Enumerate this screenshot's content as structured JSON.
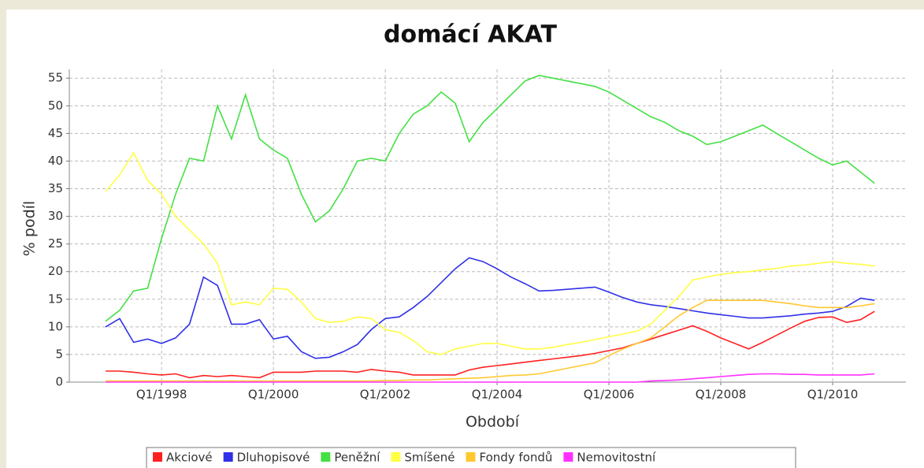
{
  "chart_data": {
    "type": "line",
    "title": "domácí AKAT",
    "x_label": "Období",
    "y_label": "% podíl",
    "x": [
      1997,
      1997.25,
      1997.5,
      1997.75,
      1998,
      1998.25,
      1998.5,
      1998.75,
      1999,
      1999.25,
      1999.5,
      1999.75,
      2000,
      2000.25,
      2000.5,
      2000.75,
      2001,
      2001.25,
      2001.5,
      2001.75,
      2002,
      2002.25,
      2002.5,
      2002.75,
      2003,
      2003.25,
      2003.5,
      2003.75,
      2004,
      2004.25,
      2004.5,
      2004.75,
      2005,
      2005.25,
      2005.5,
      2005.75,
      2006,
      2006.25,
      2006.5,
      2006.75,
      2007,
      2007.25,
      2007.5,
      2007.75,
      2008,
      2008.25,
      2008.5,
      2008.75,
      2009,
      2009.25,
      2009.5,
      2009.75,
      2010,
      2010.25,
      2010.5,
      2010.75
    ],
    "series": [
      {
        "name": "Akciové",
        "color": "#ff2020",
        "values": [
          2,
          2,
          1.8,
          1.5,
          1.3,
          1.5,
          0.8,
          1.2,
          1,
          1.2,
          1,
          0.8,
          1.8,
          1.8,
          1.8,
          2,
          2,
          2,
          1.8,
          2.3,
          2,
          1.8,
          1.3,
          1.3,
          1.3,
          1.3,
          2.2,
          2.7,
          3,
          3.3,
          3.6,
          3.9,
          4.2,
          4.5,
          4.8,
          5.2,
          5.7,
          6.2,
          7,
          7.8,
          8.6,
          9.4,
          10.2,
          9.2,
          8,
          7,
          6,
          7.2,
          8.5,
          9.8,
          11,
          11.7,
          11.8,
          10.8,
          11.3,
          12.8
        ]
      },
      {
        "name": "Dluhopisové",
        "color": "#3030e8",
        "values": [
          10,
          11.5,
          7.2,
          7.8,
          7,
          8,
          10.5,
          19,
          17.5,
          10.5,
          10.5,
          11.3,
          7.8,
          8.3,
          5.5,
          4.3,
          4.5,
          5.5,
          6.8,
          9.5,
          11.5,
          11.8,
          13.5,
          15.5,
          18,
          20.5,
          22.5,
          21.8,
          20.5,
          19,
          17.8,
          16.5,
          16.6,
          16.8,
          17,
          17.2,
          16.3,
          15.3,
          14.5,
          14,
          13.7,
          13.3,
          12.9,
          12.5,
          12.2,
          11.9,
          11.6,
          11.6,
          11.8,
          12,
          12.3,
          12.5,
          12.8,
          13.7,
          15.2,
          14.8
        ]
      },
      {
        "name": "Peněžní",
        "color": "#44e044",
        "values": [
          11,
          13,
          16.5,
          17,
          26,
          34,
          40.5,
          40,
          50,
          44,
          52,
          44,
          42,
          40.5,
          34,
          29,
          31,
          35,
          40,
          40.5,
          40,
          45,
          48.5,
          50,
          52.5,
          50.5,
          43.5,
          47,
          49.5,
          52,
          54.5,
          55.5,
          55,
          54.5,
          54,
          53.5,
          52.5,
          51,
          49.5,
          48,
          47,
          45.5,
          44.5,
          43,
          43.5,
          44.5,
          45.5,
          46.5,
          45,
          43.5,
          42,
          40.5,
          39.3,
          40,
          38,
          36
        ]
      },
      {
        "name": "Smíšené",
        "color": "#ffff44",
        "values": [
          34.5,
          37.5,
          41.5,
          36.5,
          34,
          30,
          27.5,
          25,
          21.5,
          14,
          14.5,
          14,
          17,
          16.8,
          14.5,
          11.5,
          10.8,
          11,
          11.8,
          11.5,
          9.5,
          9,
          7.5,
          5.5,
          5,
          6,
          6.5,
          7,
          7,
          6.5,
          6,
          6,
          6.3,
          6.8,
          7.2,
          7.7,
          8.2,
          8.7,
          9.2,
          10.5,
          13,
          15.5,
          18.5,
          19,
          19.5,
          19.8,
          20,
          20.3,
          20.6,
          21,
          21.2,
          21.5,
          21.8,
          21.5,
          21.3,
          21
        ]
      },
      {
        "name": "Fondy fondů",
        "color": "#ffc830",
        "values": [
          0.2,
          0.2,
          0.2,
          0.2,
          0.2,
          0.2,
          0.2,
          0.2,
          0.2,
          0.2,
          0.2,
          0.2,
          0.2,
          0.2,
          0.2,
          0.2,
          0.2,
          0.2,
          0.2,
          0.2,
          0.3,
          0.3,
          0.4,
          0.4,
          0.5,
          0.6,
          0.7,
          0.8,
          1,
          1.2,
          1.3,
          1.5,
          2,
          2.5,
          3,
          3.5,
          4.8,
          6,
          7,
          8,
          10,
          12,
          13.5,
          14.8,
          14.8,
          14.8,
          14.8,
          14.8,
          14.5,
          14.2,
          13.8,
          13.5,
          13.5,
          13.5,
          13.8,
          14.2
        ]
      },
      {
        "name": "Nemovitostní",
        "color": "#ff30ff",
        "values": [
          0,
          0,
          0,
          0,
          0,
          0,
          0,
          0,
          0,
          0,
          0,
          0,
          0,
          0,
          0,
          0,
          0,
          0,
          0,
          0,
          0,
          0,
          0,
          0,
          0,
          0,
          0,
          0,
          0,
          0,
          0,
          0,
          0,
          0,
          0,
          0,
          0,
          0,
          0,
          0.2,
          0.3,
          0.4,
          0.6,
          0.8,
          1,
          1.2,
          1.4,
          1.5,
          1.5,
          1.4,
          1.4,
          1.3,
          1.3,
          1.3,
          1.3,
          1.5
        ]
      }
    ],
    "xlim": [
      1996.35,
      2011.31
    ],
    "xticks": [
      {
        "value": 1998,
        "label": "Q1/1998"
      },
      {
        "value": 2000,
        "label": "Q1/2000"
      },
      {
        "value": 2002,
        "label": "Q1/2002"
      },
      {
        "value": 2004,
        "label": "Q1/2004"
      },
      {
        "value": 2006,
        "label": "Q1/2006"
      },
      {
        "value": 2008,
        "label": "Q1/2008"
      },
      {
        "value": 2010,
        "label": "Q1/2010"
      }
    ],
    "ylim": [
      0,
      56.6
    ],
    "yticks": [
      0,
      5,
      10,
      15,
      20,
      25,
      30,
      35,
      40,
      45,
      50,
      55
    ],
    "grid": true,
    "legend": "bottom"
  }
}
